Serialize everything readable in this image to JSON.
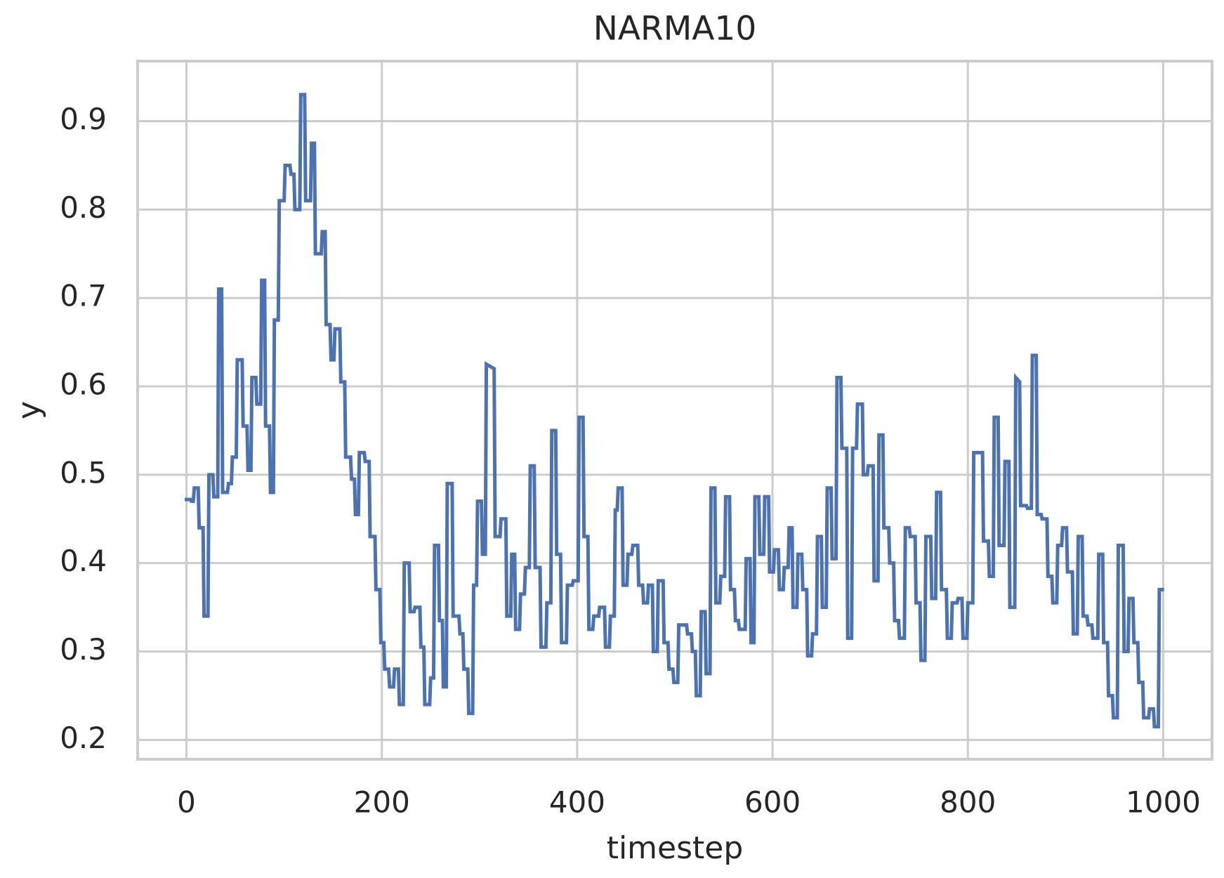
{
  "chart_data": {
    "type": "line",
    "title": "NARMA10",
    "x_label": "timestep",
    "y_label": "y",
    "color": "#4c72b0",
    "grid": true,
    "xlim": [
      -50,
      1050
    ],
    "ylim": [
      0.178,
      0.968
    ],
    "xticks": [
      0,
      200,
      400,
      600,
      800,
      1000
    ],
    "yticks": [
      0.2,
      0.3,
      0.4,
      0.5,
      0.6,
      0.7,
      0.8,
      0.9
    ],
    "x": [
      0,
      4,
      5,
      7,
      8,
      12,
      13,
      17,
      18,
      22,
      23,
      27,
      28,
      32,
      33,
      36,
      37,
      42,
      43,
      46,
      47,
      51,
      52,
      57,
      58,
      62,
      63,
      66,
      67,
      71,
      72,
      76,
      77,
      80,
      81,
      85,
      86,
      89,
      90,
      94,
      95,
      100,
      101,
      106,
      107,
      110,
      111,
      116,
      117,
      121,
      122,
      127,
      128,
      131,
      132,
      138,
      139,
      142,
      143,
      147,
      148,
      151,
      152,
      157,
      158,
      162,
      163,
      168,
      169,
      172,
      173,
      176,
      177,
      182,
      183,
      187,
      188,
      193,
      194,
      198,
      199,
      202,
      203,
      207,
      208,
      212,
      213,
      217,
      218,
      222,
      223,
      228,
      229,
      233,
      234,
      239,
      240,
      243,
      244,
      249,
      250,
      253,
      254,
      258,
      259,
      262,
      263,
      266,
      267,
      272,
      273,
      279,
      280,
      283,
      284,
      288,
      289,
      293,
      294,
      297,
      298,
      302,
      303,
      306,
      307,
      315,
      316,
      321,
      322,
      327,
      328,
      332,
      333,
      336,
      337,
      341,
      342,
      346,
      347,
      351,
      352,
      356,
      357,
      362,
      363,
      368,
      369,
      373,
      374,
      378,
      379,
      383,
      384,
      389,
      390,
      395,
      396,
      401,
      402,
      406,
      407,
      411,
      412,
      416,
      417,
      422,
      423,
      428,
      429,
      433,
      434,
      438,
      439,
      441,
      442,
      446,
      447,
      451,
      452,
      456,
      457,
      462,
      463,
      467,
      468,
      472,
      473,
      477,
      478,
      482,
      483,
      488,
      489,
      493,
      494,
      498,
      499,
      503,
      504,
      512,
      513,
      517,
      518,
      521,
      522,
      526,
      527,
      531,
      532,
      536,
      537,
      541,
      542,
      546,
      547,
      551,
      552,
      556,
      557,
      561,
      562,
      565,
      566,
      572,
      573,
      577,
      578,
      581,
      582,
      586,
      587,
      591,
      592,
      596,
      597,
      601,
      602,
      606,
      607,
      611,
      612,
      616,
      617,
      620,
      621,
      625,
      626,
      630,
      631,
      635,
      636,
      640,
      641,
      645,
      646,
      650,
      651,
      655,
      656,
      660,
      661,
      665,
      666,
      670,
      671,
      676,
      677,
      681,
      682,
      686,
      687,
      692,
      693,
      697,
      698,
      703,
      704,
      708,
      709,
      713,
      714,
      719,
      720,
      724,
      725,
      729,
      730,
      735,
      736,
      740,
      741,
      746,
      747,
      751,
      752,
      756,
      757,
      762,
      763,
      767,
      768,
      772,
      773,
      778,
      779,
      783,
      784,
      789,
      790,
      794,
      795,
      799,
      800,
      805,
      806,
      815,
      816,
      821,
      822,
      826,
      827,
      831,
      832,
      837,
      838,
      842,
      843,
      848,
      849,
      853,
      854,
      860,
      861,
      865,
      866,
      870,
      871,
      875,
      876,
      881,
      882,
      886,
      887,
      891,
      892,
      896,
      897,
      901,
      902,
      907,
      908,
      912,
      913,
      917,
      918,
      922,
      923,
      927,
      928,
      933,
      934,
      938,
      939,
      943,
      944,
      948,
      949,
      953,
      954,
      959,
      960,
      964,
      965,
      969,
      970,
      974,
      975,
      979,
      980,
      985,
      986,
      990,
      991,
      995,
      996,
      999
    ],
    "values": [
      0.472,
      0.472,
      0.47,
      0.47,
      0.485,
      0.485,
      0.44,
      0.44,
      0.34,
      0.34,
      0.5,
      0.5,
      0.475,
      0.475,
      0.71,
      0.71,
      0.48,
      0.48,
      0.49,
      0.49,
      0.52,
      0.52,
      0.63,
      0.63,
      0.555,
      0.555,
      0.505,
      0.505,
      0.61,
      0.61,
      0.58,
      0.58,
      0.72,
      0.72,
      0.555,
      0.555,
      0.48,
      0.48,
      0.675,
      0.675,
      0.81,
      0.81,
      0.85,
      0.85,
      0.84,
      0.84,
      0.8,
      0.8,
      0.93,
      0.93,
      0.81,
      0.81,
      0.875,
      0.875,
      0.75,
      0.75,
      0.775,
      0.775,
      0.67,
      0.67,
      0.63,
      0.63,
      0.665,
      0.665,
      0.605,
      0.605,
      0.52,
      0.52,
      0.495,
      0.495,
      0.455,
      0.455,
      0.525,
      0.525,
      0.515,
      0.515,
      0.43,
      0.43,
      0.37,
      0.37,
      0.31,
      0.31,
      0.28,
      0.28,
      0.26,
      0.26,
      0.28,
      0.28,
      0.24,
      0.24,
      0.4,
      0.4,
      0.345,
      0.345,
      0.35,
      0.35,
      0.305,
      0.305,
      0.24,
      0.24,
      0.27,
      0.27,
      0.42,
      0.42,
      0.335,
      0.335,
      0.26,
      0.26,
      0.49,
      0.49,
      0.34,
      0.34,
      0.32,
      0.32,
      0.28,
      0.28,
      0.23,
      0.23,
      0.375,
      0.375,
      0.47,
      0.47,
      0.41,
      0.41,
      0.625,
      0.62,
      0.43,
      0.43,
      0.45,
      0.45,
      0.34,
      0.34,
      0.41,
      0.41,
      0.325,
      0.325,
      0.365,
      0.365,
      0.395,
      0.395,
      0.51,
      0.51,
      0.395,
      0.395,
      0.305,
      0.305,
      0.355,
      0.355,
      0.55,
      0.55,
      0.41,
      0.41,
      0.31,
      0.31,
      0.375,
      0.375,
      0.38,
      0.38,
      0.565,
      0.565,
      0.43,
      0.43,
      0.325,
      0.325,
      0.34,
      0.34,
      0.35,
      0.35,
      0.305,
      0.305,
      0.34,
      0.34,
      0.46,
      0.46,
      0.485,
      0.485,
      0.375,
      0.375,
      0.41,
      0.41,
      0.42,
      0.42,
      0.375,
      0.375,
      0.355,
      0.355,
      0.375,
      0.375,
      0.3,
      0.3,
      0.38,
      0.38,
      0.31,
      0.31,
      0.28,
      0.28,
      0.265,
      0.265,
      0.33,
      0.33,
      0.32,
      0.32,
      0.3,
      0.3,
      0.25,
      0.25,
      0.345,
      0.345,
      0.275,
      0.275,
      0.485,
      0.485,
      0.355,
      0.355,
      0.385,
      0.385,
      0.475,
      0.475,
      0.37,
      0.37,
      0.335,
      0.335,
      0.325,
      0.325,
      0.405,
      0.405,
      0.31,
      0.31,
      0.475,
      0.475,
      0.41,
      0.41,
      0.475,
      0.475,
      0.39,
      0.39,
      0.415,
      0.415,
      0.37,
      0.37,
      0.395,
      0.395,
      0.44,
      0.44,
      0.35,
      0.35,
      0.41,
      0.41,
      0.37,
      0.37,
      0.295,
      0.295,
      0.32,
      0.32,
      0.43,
      0.43,
      0.35,
      0.35,
      0.485,
      0.485,
      0.405,
      0.405,
      0.61,
      0.61,
      0.53,
      0.53,
      0.315,
      0.315,
      0.53,
      0.53,
      0.58,
      0.58,
      0.5,
      0.5,
      0.51,
      0.51,
      0.38,
      0.38,
      0.545,
      0.545,
      0.44,
      0.44,
      0.4,
      0.4,
      0.335,
      0.335,
      0.315,
      0.315,
      0.44,
      0.44,
      0.43,
      0.43,
      0.355,
      0.355,
      0.29,
      0.29,
      0.43,
      0.43,
      0.36,
      0.36,
      0.48,
      0.48,
      0.37,
      0.37,
      0.315,
      0.315,
      0.355,
      0.355,
      0.36,
      0.36,
      0.315,
      0.315,
      0.355,
      0.355,
      0.525,
      0.525,
      0.425,
      0.425,
      0.385,
      0.385,
      0.565,
      0.565,
      0.42,
      0.42,
      0.515,
      0.515,
      0.35,
      0.35,
      0.61,
      0.605,
      0.465,
      0.465,
      0.462,
      0.462,
      0.635,
      0.635,
      0.455,
      0.455,
      0.45,
      0.45,
      0.385,
      0.385,
      0.355,
      0.355,
      0.42,
      0.42,
      0.44,
      0.44,
      0.39,
      0.39,
      0.32,
      0.32,
      0.43,
      0.43,
      0.34,
      0.34,
      0.33,
      0.33,
      0.315,
      0.315,
      0.41,
      0.41,
      0.31,
      0.31,
      0.25,
      0.25,
      0.225,
      0.225,
      0.42,
      0.42,
      0.3,
      0.3,
      0.36,
      0.36,
      0.31,
      0.31,
      0.265,
      0.265,
      0.225,
      0.225,
      0.235,
      0.235,
      0.215,
      0.215,
      0.37,
      0.37
    ]
  }
}
